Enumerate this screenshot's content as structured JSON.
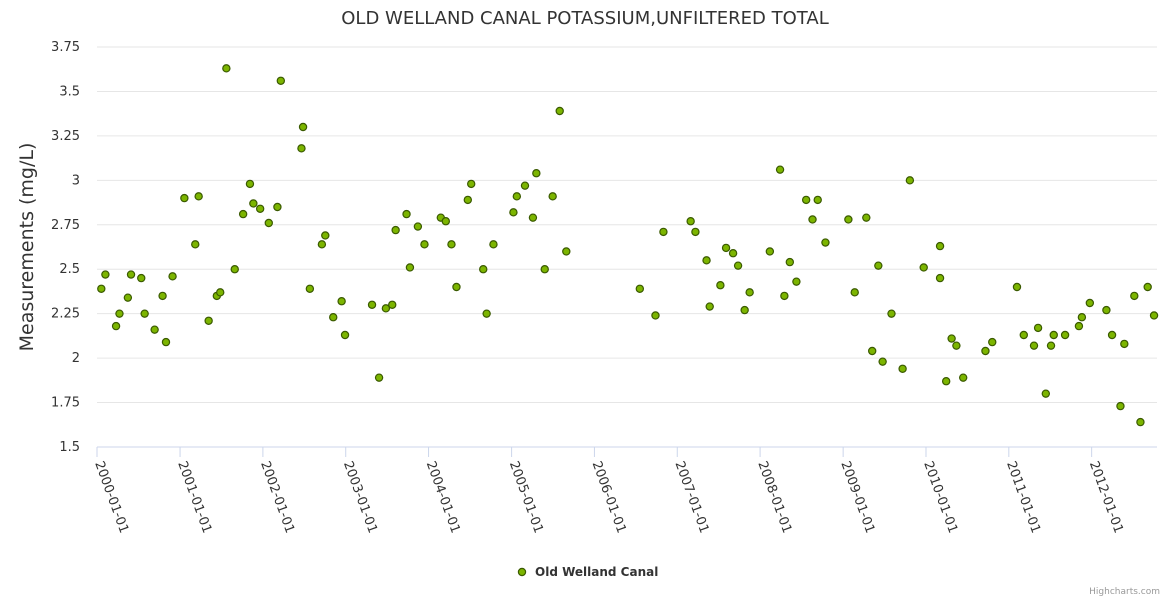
{
  "colors": {
    "marker": "#7cb500",
    "marker_stroke": "#3a5a00",
    "grid": "#e6e6e6",
    "axis": "#ccd6eb",
    "text": "#333333",
    "credits": "#999999"
  },
  "credits": "Highcharts.com",
  "chart_data": {
    "type": "scatter",
    "title": "OLD WELLAND CANAL POTASSIUM,UNFILTERED TOTAL",
    "xlabel": "",
    "ylabel": "Measurements (mg/L)",
    "ylim": [
      1.5,
      3.75
    ],
    "yticks": [
      "1.5",
      "1.75",
      "2",
      "2.25",
      "2.5",
      "2.75",
      "3",
      "3.25",
      "3.5",
      "3.75"
    ],
    "xlim": [
      "2000-01-01",
      "2012-10-15"
    ],
    "xticks": [
      "2000-01-01",
      "2001-01-01",
      "2002-01-01",
      "2003-01-01",
      "2004-01-01",
      "2005-01-01",
      "2006-01-01",
      "2007-01-01",
      "2008-01-01",
      "2009-01-01",
      "2010-01-01",
      "2011-01-01",
      "2012-01-01"
    ],
    "legend": {
      "position": "bottom-center",
      "entries": [
        "Old Welland Canal"
      ]
    },
    "series": [
      {
        "name": "Old Welland Canal",
        "points": [
          {
            "x": "2000-01-20",
            "y": 2.39
          },
          {
            "x": "2000-02-07",
            "y": 2.47
          },
          {
            "x": "2000-03-25",
            "y": 2.18
          },
          {
            "x": "2000-04-09",
            "y": 2.25
          },
          {
            "x": "2000-05-16",
            "y": 2.34
          },
          {
            "x": "2000-05-30",
            "y": 2.47
          },
          {
            "x": "2000-07-14",
            "y": 2.45
          },
          {
            "x": "2000-07-29",
            "y": 2.25
          },
          {
            "x": "2000-09-11",
            "y": 2.16
          },
          {
            "x": "2000-10-16",
            "y": 2.35
          },
          {
            "x": "2000-10-31",
            "y": 2.09
          },
          {
            "x": "2000-11-29",
            "y": 2.46
          },
          {
            "x": "2001-01-20",
            "y": 2.9
          },
          {
            "x": "2001-03-09",
            "y": 2.64
          },
          {
            "x": "2001-03-24",
            "y": 2.91
          },
          {
            "x": "2001-05-07",
            "y": 2.21
          },
          {
            "x": "2001-06-12",
            "y": 2.35
          },
          {
            "x": "2001-06-27",
            "y": 2.37
          },
          {
            "x": "2001-07-24",
            "y": 3.63
          },
          {
            "x": "2001-08-30",
            "y": 2.5
          },
          {
            "x": "2001-10-06",
            "y": 2.81
          },
          {
            "x": "2001-11-05",
            "y": 2.98
          },
          {
            "x": "2001-11-20",
            "y": 2.87
          },
          {
            "x": "2001-12-20",
            "y": 2.84
          },
          {
            "x": "2002-01-27",
            "y": 2.76
          },
          {
            "x": "2002-03-06",
            "y": 2.85
          },
          {
            "x": "2002-03-21",
            "y": 3.56
          },
          {
            "x": "2002-06-20",
            "y": 3.18
          },
          {
            "x": "2002-06-27",
            "y": 3.3
          },
          {
            "x": "2002-07-27",
            "y": 2.39
          },
          {
            "x": "2002-09-18",
            "y": 2.64
          },
          {
            "x": "2002-10-03",
            "y": 2.69
          },
          {
            "x": "2002-11-07",
            "y": 2.23
          },
          {
            "x": "2002-12-14",
            "y": 2.32
          },
          {
            "x": "2002-12-29",
            "y": 2.13
          },
          {
            "x": "2003-04-27",
            "y": 2.3
          },
          {
            "x": "2003-05-28",
            "y": 1.89
          },
          {
            "x": "2003-06-27",
            "y": 2.28
          },
          {
            "x": "2003-07-25",
            "y": 2.3
          },
          {
            "x": "2003-08-09",
            "y": 2.72
          },
          {
            "x": "2003-09-26",
            "y": 2.81
          },
          {
            "x": "2003-10-11",
            "y": 2.51
          },
          {
            "x": "2003-11-15",
            "y": 2.74
          },
          {
            "x": "2003-12-14",
            "y": 2.64
          },
          {
            "x": "2004-02-24",
            "y": 2.79
          },
          {
            "x": "2004-03-17",
            "y": 2.77
          },
          {
            "x": "2004-04-11",
            "y": 2.64
          },
          {
            "x": "2004-05-03",
            "y": 2.4
          },
          {
            "x": "2004-06-22",
            "y": 2.89
          },
          {
            "x": "2004-07-07",
            "y": 2.98
          },
          {
            "x": "2004-08-29",
            "y": 2.5
          },
          {
            "x": "2004-09-13",
            "y": 2.25
          },
          {
            "x": "2004-10-13",
            "y": 2.64
          },
          {
            "x": "2005-01-09",
            "y": 2.82
          },
          {
            "x": "2005-01-24",
            "y": 2.91
          },
          {
            "x": "2005-03-01",
            "y": 2.97
          },
          {
            "x": "2005-04-05",
            "y": 2.79
          },
          {
            "x": "2005-04-20",
            "y": 3.04
          },
          {
            "x": "2005-05-27",
            "y": 2.5
          },
          {
            "x": "2005-07-01",
            "y": 2.91
          },
          {
            "x": "2005-08-01",
            "y": 3.39
          },
          {
            "x": "2005-08-30",
            "y": 2.6
          },
          {
            "x": "2006-07-20",
            "y": 2.39
          },
          {
            "x": "2006-09-27",
            "y": 2.24
          },
          {
            "x": "2006-11-01",
            "y": 2.71
          },
          {
            "x": "2007-03-01",
            "y": 2.77
          },
          {
            "x": "2007-03-22",
            "y": 2.71
          },
          {
            "x": "2007-05-10",
            "y": 2.55
          },
          {
            "x": "2007-05-24",
            "y": 2.29
          },
          {
            "x": "2007-07-10",
            "y": 2.41
          },
          {
            "x": "2007-08-04",
            "y": 2.62
          },
          {
            "x": "2007-09-04",
            "y": 2.59
          },
          {
            "x": "2007-09-26",
            "y": 2.52
          },
          {
            "x": "2007-10-25",
            "y": 2.27
          },
          {
            "x": "2007-11-16",
            "y": 2.37
          },
          {
            "x": "2008-02-13",
            "y": 2.6
          },
          {
            "x": "2008-03-29",
            "y": 3.06
          },
          {
            "x": "2008-04-17",
            "y": 2.35
          },
          {
            "x": "2008-05-11",
            "y": 2.54
          },
          {
            "x": "2008-06-09",
            "y": 2.43
          },
          {
            "x": "2008-07-22",
            "y": 2.89
          },
          {
            "x": "2008-08-19",
            "y": 2.78
          },
          {
            "x": "2008-09-11",
            "y": 2.89
          },
          {
            "x": "2008-10-15",
            "y": 2.65
          },
          {
            "x": "2009-01-24",
            "y": 2.78
          },
          {
            "x": "2009-02-21",
            "y": 2.37
          },
          {
            "x": "2009-04-13",
            "y": 2.79
          },
          {
            "x": "2009-05-09",
            "y": 2.04
          },
          {
            "x": "2009-06-05",
            "y": 2.52
          },
          {
            "x": "2009-06-24",
            "y": 1.98
          },
          {
            "x": "2009-08-02",
            "y": 2.25
          },
          {
            "x": "2009-09-20",
            "y": 1.94
          },
          {
            "x": "2009-10-22",
            "y": 3.0
          },
          {
            "x": "2009-12-22",
            "y": 2.51
          },
          {
            "x": "2010-03-04",
            "y": 2.63
          },
          {
            "x": "2010-03-04",
            "y": 2.45
          },
          {
            "x": "2010-03-31",
            "y": 1.87
          },
          {
            "x": "2010-04-24",
            "y": 2.11
          },
          {
            "x": "2010-05-15",
            "y": 2.07
          },
          {
            "x": "2010-06-14",
            "y": 1.89
          },
          {
            "x": "2010-09-20",
            "y": 2.04
          },
          {
            "x": "2010-10-20",
            "y": 2.09
          },
          {
            "x": "2011-02-06",
            "y": 2.4
          },
          {
            "x": "2011-03-08",
            "y": 2.13
          },
          {
            "x": "2011-04-22",
            "y": 2.07
          },
          {
            "x": "2011-05-10",
            "y": 2.17
          },
          {
            "x": "2011-06-13",
            "y": 1.8
          },
          {
            "x": "2011-07-06",
            "y": 2.07
          },
          {
            "x": "2011-07-18",
            "y": 2.13
          },
          {
            "x": "2011-09-06",
            "y": 2.13
          },
          {
            "x": "2011-11-06",
            "y": 2.18
          },
          {
            "x": "2011-11-19",
            "y": 2.23
          },
          {
            "x": "2011-12-24",
            "y": 2.31
          },
          {
            "x": "2012-03-06",
            "y": 2.27
          },
          {
            "x": "2012-03-31",
            "y": 2.13
          },
          {
            "x": "2012-05-07",
            "y": 1.73
          },
          {
            "x": "2012-05-24",
            "y": 2.08
          },
          {
            "x": "2012-07-07",
            "y": 2.35
          },
          {
            "x": "2012-08-03",
            "y": 1.64
          },
          {
            "x": "2012-09-04",
            "y": 2.4
          },
          {
            "x": "2012-10-02",
            "y": 2.24
          }
        ]
      }
    ]
  }
}
